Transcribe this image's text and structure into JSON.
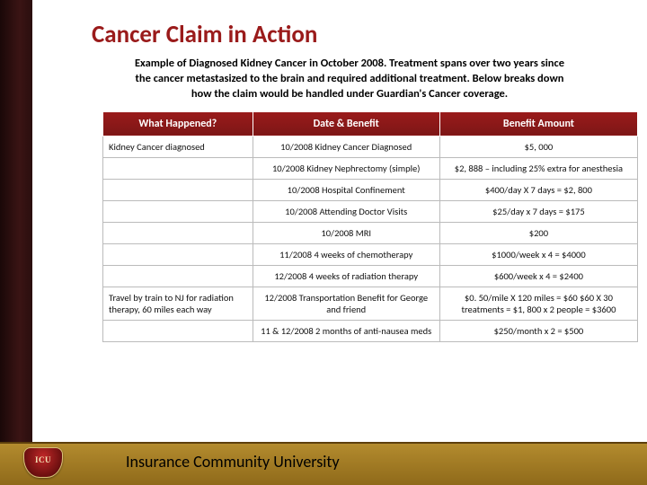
{
  "title": "Cancer Claim in Action",
  "intro": "Example of Diagnosed Kidney Cancer in October 2008. Treatment spans over two years since the cancer metastasized to the brain and required additional treatment. Below breaks down how the claim would be handled under Guardian's Cancer coverage.",
  "table": {
    "headers": [
      "What Happened?",
      "Date & Benefit",
      "Benefit Amount"
    ],
    "rows": [
      [
        "Kidney Cancer diagnosed",
        "10/2008 Kidney Cancer Diagnosed",
        "$5, 000"
      ],
      [
        "",
        "10/2008 Kidney Nephrectomy (simple)",
        "$2, 888 – including 25% extra for anesthesia"
      ],
      [
        "",
        "10/2008 Hospital Confinement",
        "$400/day X 7 days = $2, 800"
      ],
      [
        "",
        "10/2008 Attending Doctor Visits",
        "$25/day x 7 days = $175"
      ],
      [
        "",
        "10/2008 MRI",
        "$200"
      ],
      [
        "",
        "11/2008  4 weeks of chemotherapy",
        "$1000/week x 4 = $4000"
      ],
      [
        "",
        "12/2008  4 weeks of radiation therapy",
        "$600/week x 4 = $2400"
      ],
      [
        "Travel by train to NJ for radiation therapy, 60 miles each way",
        "12/2008 Transportation Benefit for George and friend",
        "$0. 50/mile X 120 miles = $60 $60 X 30 treatments = $1, 800 x 2 people = $3600"
      ],
      [
        "",
        "11 & 12/2008 2 months of anti-nausea meds",
        "$250/month x 2 = $500"
      ]
    ]
  },
  "footer": "Insurance Community University",
  "logo_text": "ICU",
  "colors": {
    "brand_red": "#9a1b1b",
    "gold_top": "#b38b2e",
    "gold_bottom": "#8f6a1a",
    "sidebar_dark": "#2a0e0e"
  }
}
